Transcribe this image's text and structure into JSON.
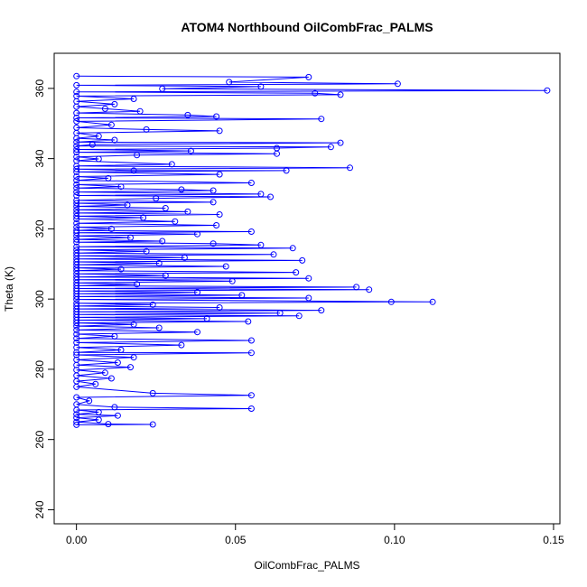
{
  "chart_data": {
    "type": "line",
    "title": "ATOM4 Northbound OilCombFrac_PALMS",
    "xlabel": "OilCombFrac_PALMS",
    "ylabel": "Theta (K)",
    "xlim": [
      -0.007,
      0.152
    ],
    "ylim": [
      236,
      370
    ],
    "xticks": [
      0.0,
      0.05,
      0.1,
      0.15
    ],
    "xtick_labels": [
      "0.00",
      "0.05",
      "0.10",
      "0.15"
    ],
    "yticks": [
      240,
      260,
      280,
      300,
      320,
      340,
      360
    ],
    "ytick_labels": [
      "240",
      "260",
      "280",
      "300",
      "320",
      "340",
      "360"
    ],
    "grid": false,
    "series": [
      {
        "color": "#0000ff",
        "marker": "open-circle",
        "points": [
          [
            0.0,
            363.5
          ],
          [
            0.073,
            363.2
          ],
          [
            0.048,
            361.8
          ],
          [
            0.101,
            361.3
          ],
          [
            0.0,
            360.9
          ],
          [
            0.058,
            360.5
          ],
          [
            0.027,
            359.9
          ],
          [
            0.148,
            359.4
          ],
          [
            0.0,
            359.0
          ],
          [
            0.075,
            358.6
          ],
          [
            0.083,
            358.2
          ],
          [
            0.0,
            357.8
          ],
          [
            0.018,
            357.0
          ],
          [
            0.0,
            356.3
          ],
          [
            0.012,
            355.5
          ],
          [
            0.0,
            354.8
          ],
          [
            0.009,
            354.2
          ],
          [
            0.02,
            353.5
          ],
          [
            0.0,
            353.0
          ],
          [
            0.035,
            352.4
          ],
          [
            0.044,
            352.0
          ],
          [
            0.0,
            351.6
          ],
          [
            0.077,
            351.3
          ],
          [
            0.0,
            350.6
          ],
          [
            0.011,
            349.6
          ],
          [
            0.0,
            348.8
          ],
          [
            0.022,
            348.3
          ],
          [
            0.045,
            347.9
          ],
          [
            0.0,
            347.3
          ],
          [
            0.007,
            346.4
          ],
          [
            0.0,
            345.8
          ],
          [
            0.012,
            345.3
          ],
          [
            0.0,
            344.7
          ],
          [
            0.083,
            344.5
          ],
          [
            0.005,
            344.0
          ],
          [
            0.0,
            343.6
          ],
          [
            0.08,
            343.3
          ],
          [
            0.063,
            343.0
          ],
          [
            0.0,
            342.6
          ],
          [
            0.036,
            342.2
          ],
          [
            0.0,
            341.8
          ],
          [
            0.063,
            341.4
          ],
          [
            0.019,
            341.0
          ],
          [
            0.0,
            340.5
          ],
          [
            0.007,
            339.9
          ],
          [
            0.0,
            339.4
          ],
          [
            0.03,
            338.4
          ],
          [
            0.0,
            337.9
          ],
          [
            0.086,
            337.4
          ],
          [
            0.0,
            337.0
          ],
          [
            0.018,
            336.6
          ],
          [
            0.066,
            336.6
          ],
          [
            0.0,
            336.2
          ],
          [
            0.045,
            335.5
          ],
          [
            0.0,
            334.9
          ],
          [
            0.01,
            334.4
          ],
          [
            0.0,
            333.8
          ],
          [
            0.055,
            333.1
          ],
          [
            0.0,
            332.6
          ],
          [
            0.014,
            332.0
          ],
          [
            0.0,
            331.6
          ],
          [
            0.033,
            331.2
          ],
          [
            0.043,
            330.9
          ],
          [
            0.0,
            330.5
          ],
          [
            0.058,
            329.9
          ],
          [
            0.0,
            329.5
          ],
          [
            0.061,
            329.1
          ],
          [
            0.025,
            328.7
          ],
          [
            0.0,
            328.1
          ],
          [
            0.043,
            327.6
          ],
          [
            0.0,
            327.3
          ],
          [
            0.016,
            326.8
          ],
          [
            0.0,
            326.4
          ],
          [
            0.028,
            325.9
          ],
          [
            0.0,
            325.4
          ],
          [
            0.035,
            324.9
          ],
          [
            0.0,
            324.5
          ],
          [
            0.045,
            324.1
          ],
          [
            0.0,
            323.6
          ],
          [
            0.021,
            323.2
          ],
          [
            0.0,
            322.8
          ],
          [
            0.031,
            322.1
          ],
          [
            0.0,
            321.6
          ],
          [
            0.044,
            321.0
          ],
          [
            0.0,
            320.5
          ],
          [
            0.011,
            320.0
          ],
          [
            0.0,
            319.5
          ],
          [
            0.055,
            319.2
          ],
          [
            0.0,
            318.9
          ],
          [
            0.038,
            318.5
          ],
          [
            0.0,
            318.0
          ],
          [
            0.017,
            317.5
          ],
          [
            0.0,
            317.0
          ],
          [
            0.027,
            316.5
          ],
          [
            0.0,
            316.2
          ],
          [
            0.043,
            315.8
          ],
          [
            0.058,
            315.4
          ],
          [
            0.0,
            314.9
          ],
          [
            0.068,
            314.5
          ],
          [
            0.0,
            314.0
          ],
          [
            0.022,
            313.6
          ],
          [
            0.0,
            313.1
          ],
          [
            0.062,
            312.7
          ],
          [
            0.0,
            312.3
          ],
          [
            0.034,
            311.8
          ],
          [
            0.0,
            311.4
          ],
          [
            0.071,
            311.0
          ],
          [
            0.0,
            310.6
          ],
          [
            0.026,
            310.2
          ],
          [
            0.0,
            309.8
          ],
          [
            0.047,
            309.3
          ],
          [
            0.0,
            308.9
          ],
          [
            0.014,
            308.5
          ],
          [
            0.0,
            308.1
          ],
          [
            0.069,
            307.6
          ],
          [
            0.0,
            307.2
          ],
          [
            0.028,
            306.7
          ],
          [
            0.0,
            306.3
          ],
          [
            0.073,
            305.9
          ],
          [
            0.0,
            305.5
          ],
          [
            0.049,
            305.1
          ],
          [
            0.0,
            304.6
          ],
          [
            0.019,
            304.2
          ],
          [
            0.0,
            303.8
          ],
          [
            0.088,
            303.4
          ],
          [
            0.0,
            303.0
          ],
          [
            0.092,
            302.7
          ],
          [
            0.0,
            302.3
          ],
          [
            0.038,
            301.9
          ],
          [
            0.0,
            301.5
          ],
          [
            0.052,
            301.1
          ],
          [
            0.0,
            300.7
          ],
          [
            0.073,
            300.3
          ],
          [
            0.0,
            299.9
          ],
          [
            0.112,
            299.2
          ],
          [
            0.099,
            299.2
          ],
          [
            0.0,
            298.8
          ],
          [
            0.024,
            298.4
          ],
          [
            0.0,
            298.0
          ],
          [
            0.045,
            297.6
          ],
          [
            0.0,
            297.2
          ],
          [
            0.077,
            296.8
          ],
          [
            0.0,
            296.4
          ],
          [
            0.064,
            296.0
          ],
          [
            0.0,
            295.6
          ],
          [
            0.07,
            295.2
          ],
          [
            0.0,
            294.8
          ],
          [
            0.041,
            294.4
          ],
          [
            0.0,
            294.0
          ],
          [
            0.054,
            293.6
          ],
          [
            0.0,
            293.2
          ],
          [
            0.018,
            292.8
          ],
          [
            0.0,
            292.3
          ],
          [
            0.026,
            291.8
          ],
          [
            0.0,
            291.2
          ],
          [
            0.038,
            290.6
          ],
          [
            0.0,
            290.0
          ],
          [
            0.012,
            289.4
          ],
          [
            0.0,
            288.8
          ],
          [
            0.055,
            288.2
          ],
          [
            0.0,
            287.6
          ],
          [
            0.033,
            286.9
          ],
          [
            0.0,
            286.2
          ],
          [
            0.014,
            285.5
          ],
          [
            0.0,
            284.8
          ],
          [
            0.055,
            284.7
          ],
          [
            0.0,
            284.1
          ],
          [
            0.018,
            283.4
          ],
          [
            0.0,
            282.7
          ],
          [
            0.013,
            281.9
          ],
          [
            0.0,
            281.2
          ],
          [
            0.017,
            280.6
          ],
          [
            0.0,
            279.8
          ],
          [
            0.009,
            279.0
          ],
          [
            0.0,
            278.2
          ],
          [
            0.011,
            277.4
          ],
          [
            0.0,
            276.6
          ],
          [
            0.006,
            275.8
          ],
          [
            0.0,
            275.0
          ],
          [
            0.024,
            273.2
          ],
          [
            0.055,
            272.6
          ],
          [
            0.0,
            272.0
          ],
          [
            0.004,
            271.0
          ],
          [
            0.0,
            270.0
          ],
          [
            0.012,
            269.2
          ],
          [
            0.055,
            268.8
          ],
          [
            0.0,
            268.4
          ],
          [
            0.007,
            267.8
          ],
          [
            0.0,
            267.2
          ],
          [
            0.013,
            266.8
          ],
          [
            0.0,
            266.2
          ],
          [
            0.007,
            265.6
          ],
          [
            0.0,
            265.0
          ],
          [
            0.01,
            264.4
          ],
          [
            0.024,
            264.3
          ],
          [
            0.0,
            264.2
          ]
        ]
      }
    ]
  }
}
